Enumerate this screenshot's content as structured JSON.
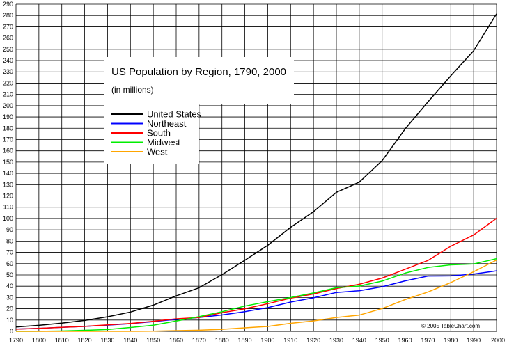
{
  "chart_data": {
    "type": "line",
    "title": "US Population by Region, 1790, 2000",
    "subtitle": "(in millions)",
    "xlabel": "",
    "ylabel": "",
    "x": [
      1790,
      1800,
      1810,
      1820,
      1830,
      1840,
      1850,
      1860,
      1870,
      1880,
      1890,
      1900,
      1910,
      1920,
      1930,
      1940,
      1950,
      1960,
      1970,
      1980,
      1990,
      2000
    ],
    "xlim": [
      1790,
      2000
    ],
    "ylim": [
      0,
      290
    ],
    "x_ticks": [
      1790,
      1800,
      1810,
      1820,
      1830,
      1840,
      1850,
      1860,
      1870,
      1880,
      1890,
      1900,
      1910,
      1920,
      1930,
      1940,
      1950,
      1960,
      1970,
      1980,
      1990,
      2000
    ],
    "y_ticks": [
      0,
      10,
      20,
      30,
      40,
      50,
      60,
      70,
      80,
      90,
      100,
      110,
      120,
      130,
      140,
      150,
      160,
      170,
      180,
      190,
      200,
      210,
      220,
      230,
      240,
      250,
      260,
      270,
      280,
      290
    ],
    "grid": true,
    "legend_position": "upper-left",
    "series": [
      {
        "name": "United States",
        "color": "#000000",
        "values": [
          3.9,
          5.3,
          7.2,
          9.6,
          12.9,
          17.1,
          23.2,
          31.4,
          38.6,
          50.2,
          63.0,
          76.2,
          92.2,
          106.0,
          123.2,
          132.2,
          151.3,
          179.3,
          203.3,
          226.5,
          248.7,
          281.4
        ]
      },
      {
        "name": "Northeast",
        "color": "#0000ff",
        "values": [
          2.0,
          2.6,
          3.5,
          4.4,
          5.5,
          6.8,
          8.6,
          10.6,
          12.3,
          14.5,
          17.4,
          21.0,
          25.9,
          29.7,
          34.4,
          36.0,
          39.5,
          44.7,
          49.0,
          49.1,
          50.8,
          53.6
        ]
      },
      {
        "name": "South",
        "color": "#ff0000",
        "values": [
          1.9,
          2.6,
          3.5,
          4.4,
          5.7,
          6.9,
          8.9,
          11.1,
          12.3,
          16.5,
          20.0,
          24.5,
          29.4,
          33.1,
          37.9,
          41.7,
          47.2,
          55.0,
          62.8,
          75.4,
          85.4,
          100.2
        ]
      },
      {
        "name": "Midwest",
        "color": "#00ee00",
        "values": [
          0.0,
          0.05,
          0.3,
          0.9,
          1.6,
          3.4,
          5.4,
          9.1,
          13.0,
          17.4,
          22.4,
          26.3,
          29.9,
          34.0,
          38.6,
          40.1,
          44.5,
          51.6,
          56.6,
          58.9,
          59.7,
          64.4
        ]
      },
      {
        "name": "West",
        "color": "#ffa500",
        "values": [
          0.0,
          0.0,
          0.0,
          0.0,
          0.0,
          0.0,
          0.2,
          0.6,
          1.0,
          1.8,
          3.1,
          4.3,
          7.1,
          9.2,
          12.3,
          14.4,
          20.2,
          28.1,
          34.8,
          43.2,
          52.8,
          63.2
        ]
      }
    ]
  },
  "copyright": "© 2005 TableChart.com"
}
